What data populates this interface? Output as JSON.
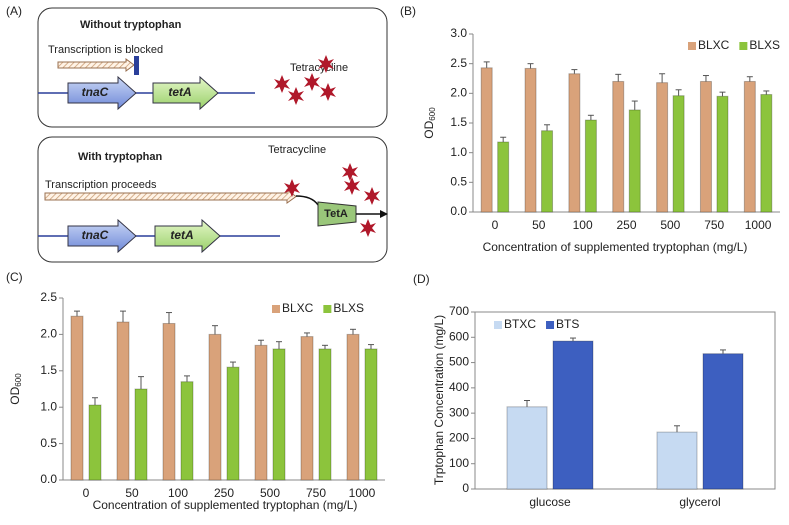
{
  "diagram": {
    "panel": "(A)",
    "top": {
      "title": "Without tryptophan",
      "arrow_label": "Transcription is blocked",
      "drug": "Tetracycline",
      "gene1": "tnaC",
      "gene2": "tetA"
    },
    "bottom": {
      "title": "With tryptophan",
      "arrow_label": "Transcription proceeds",
      "drug": "Tetracycline",
      "gene1": "tnaC",
      "gene2": "tetA",
      "pump": "TetA"
    }
  },
  "chart_data": [
    {
      "type": "bar",
      "panel": "(B)",
      "xlabel": "Concentration of supplemented tryptophan (mg/L)",
      "ylabel": "OD",
      "ylabel_sub": "600",
      "categories": [
        "0",
        "50",
        "100",
        "250",
        "500",
        "750",
        "1000"
      ],
      "series": [
        {
          "name": "BLXC",
          "color": "#d9a27a",
          "values": [
            2.43,
            2.42,
            2.33,
            2.2,
            2.18,
            2.2,
            2.2
          ],
          "errors": [
            0.1,
            0.08,
            0.07,
            0.12,
            0.15,
            0.1,
            0.08
          ]
        },
        {
          "name": "BLXS",
          "color": "#8cc43c",
          "values": [
            1.18,
            1.37,
            1.55,
            1.72,
            1.96,
            1.95,
            1.98
          ],
          "errors": [
            0.08,
            0.1,
            0.08,
            0.15,
            0.1,
            0.07,
            0.06
          ]
        }
      ],
      "ylim": [
        0,
        3
      ],
      "yticks": [
        {
          "value": 0,
          "label": "0.0"
        },
        0.5,
        {
          "value": 1,
          "label": "1.0"
        },
        1.5,
        {
          "value": 2,
          "label": "2.0"
        },
        2.5,
        {
          "value": 3,
          "label": "3.0"
        }
      ],
      "legend": "upper right"
    },
    {
      "type": "bar",
      "panel": "(C)",
      "xlabel": "Concentration of supplemented tryptophan (mg/L)",
      "ylabel": "OD",
      "ylabel_sub": "600",
      "categories": [
        "0",
        "50",
        "100",
        "250",
        "500",
        "750",
        "1000"
      ],
      "series": [
        {
          "name": "BLXC",
          "color": "#d9a27a",
          "values": [
            2.25,
            2.17,
            2.15,
            2.0,
            1.85,
            1.97,
            2.0
          ],
          "errors": [
            0.07,
            0.15,
            0.15,
            0.12,
            0.07,
            0.05,
            0.07
          ]
        },
        {
          "name": "BLXS",
          "color": "#8cc43c",
          "values": [
            1.03,
            1.25,
            1.35,
            1.55,
            1.8,
            1.8,
            1.8
          ],
          "errors": [
            0.1,
            0.17,
            0.08,
            0.07,
            0.1,
            0.05,
            0.06
          ]
        }
      ],
      "ylim": [
        0,
        2.5
      ],
      "yticks": [
        {
          "value": 0,
          "label": "0.0"
        },
        0.5,
        {
          "value": 1,
          "label": "1.0"
        },
        1.5,
        {
          "value": 2,
          "label": "2.0"
        },
        2.5
      ],
      "legend": "upper right"
    },
    {
      "type": "bar",
      "panel": "(D)",
      "ylabel": "Trptophan Concentration (mg/L)",
      "categories": [
        "glucose",
        "glycerol"
      ],
      "series": [
        {
          "name": "BTXC",
          "color": "#c6daf2",
          "values": [
            325,
            225
          ],
          "errors": [
            25,
            25
          ]
        },
        {
          "name": "BTS",
          "color": "#3d5fc0",
          "values": [
            585,
            535
          ],
          "errors": [
            12,
            15
          ]
        }
      ],
      "ylim": [
        0,
        700
      ],
      "yticks": [
        0,
        100,
        200,
        300,
        400,
        500,
        600,
        700
      ],
      "legend": "upper left"
    }
  ]
}
